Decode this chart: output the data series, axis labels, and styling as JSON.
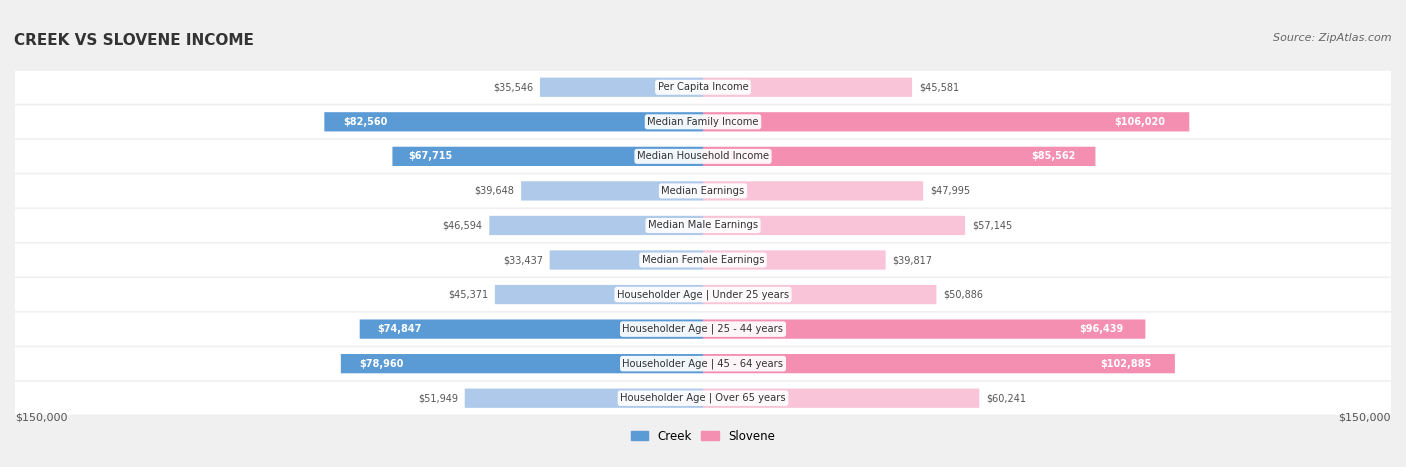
{
  "title": "CREEK VS SLOVENE INCOME",
  "source": "Source: ZipAtlas.com",
  "categories": [
    "Per Capita Income",
    "Median Family Income",
    "Median Household Income",
    "Median Earnings",
    "Median Male Earnings",
    "Median Female Earnings",
    "Householder Age | Under 25 years",
    "Householder Age | 25 - 44 years",
    "Householder Age | 45 - 64 years",
    "Householder Age | Over 65 years"
  ],
  "creek_values": [
    35546,
    82560,
    67715,
    39648,
    46594,
    33437,
    45371,
    74847,
    78960,
    51949
  ],
  "slovene_values": [
    45581,
    106020,
    85562,
    47995,
    57145,
    39817,
    50886,
    96439,
    102885,
    60241
  ],
  "creek_labels": [
    "$35,546",
    "$82,560",
    "$67,715",
    "$39,648",
    "$46,594",
    "$33,437",
    "$45,371",
    "$74,847",
    "$78,960",
    "$51,949"
  ],
  "slovene_labels": [
    "$45,581",
    "$106,020",
    "$85,562",
    "$47,995",
    "$57,145",
    "$39,817",
    "$50,886",
    "$96,439",
    "$102,885",
    "$60,241"
  ],
  "creek_color_dark": "#5b9bd5",
  "creek_color_light": "#aec9ea",
  "slovene_color_dark": "#f48fb1",
  "slovene_color_light": "#f9c4d8",
  "max_value": 150000,
  "legend_creek": "Creek",
  "legend_slovene": "Slovene",
  "bg_color": "#f5f5f5",
  "row_bg": "#eeeeee",
  "row_bg_alt": "#f9f9f9"
}
